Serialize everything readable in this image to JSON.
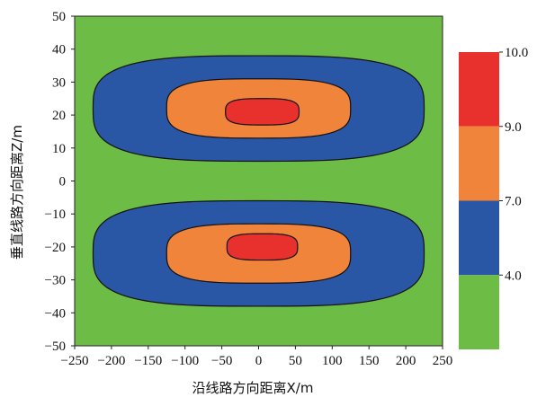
{
  "chart_data": {
    "type": "contour",
    "xlabel": "沿线路方向距离X/m",
    "ylabel": "垂直线路方向距离Z/m",
    "xlim": [
      -250,
      250
    ],
    "ylim": [
      -50,
      50
    ],
    "x_ticks": [
      "−250",
      "−200",
      "−150",
      "−100",
      "−50",
      "0",
      "50",
      "100",
      "150",
      "200",
      "250"
    ],
    "x_tick_values": [
      -250,
      -200,
      -150,
      -100,
      -50,
      0,
      50,
      100,
      150,
      200,
      250
    ],
    "y_ticks": [
      "50",
      "40",
      "30",
      "20",
      "10",
      "0",
      "−10",
      "−20",
      "−30",
      "−40",
      "−50"
    ],
    "y_tick_values": [
      50,
      40,
      30,
      20,
      10,
      0,
      -10,
      -20,
      -30,
      -40,
      -50
    ],
    "colorbar": {
      "levels": [
        4.0,
        7.0,
        9.0,
        10.0
      ],
      "labels": [
        "4.0",
        "7.0",
        "9.0",
        "10.0"
      ],
      "bands": [
        {
          "from": 4.0,
          "to": 7.0,
          "color": "#2a56a6"
        },
        {
          "from": 7.0,
          "to": 9.0,
          "color": "#f0843a"
        },
        {
          "from": 9.0,
          "to": 10.0,
          "color": "#e8312c"
        }
      ],
      "below_color": "#6cbc45"
    },
    "background_color": "#6cbc45",
    "contours": [
      {
        "center": [
          0,
          22
        ],
        "level": 4.0,
        "x_half": 225,
        "z_half": 16,
        "color": "#2a56a6"
      },
      {
        "center": [
          0,
          22
        ],
        "level": 7.0,
        "x_half": 125,
        "z_half": 9,
        "color": "#f0843a"
      },
      {
        "center": [
          5,
          21
        ],
        "level": 9.0,
        "x_half": 50,
        "z_half": 4,
        "color": "#e8312c"
      },
      {
        "center": [
          0,
          -22
        ],
        "level": 4.0,
        "x_half": 225,
        "z_half": 16,
        "color": "#2a56a6"
      },
      {
        "center": [
          0,
          -22
        ],
        "level": 7.0,
        "x_half": 125,
        "z_half": 9,
        "color": "#f0843a"
      },
      {
        "center": [
          5,
          -20
        ],
        "level": 9.0,
        "x_half": 48,
        "z_half": 4,
        "color": "#e8312c"
      }
    ]
  }
}
